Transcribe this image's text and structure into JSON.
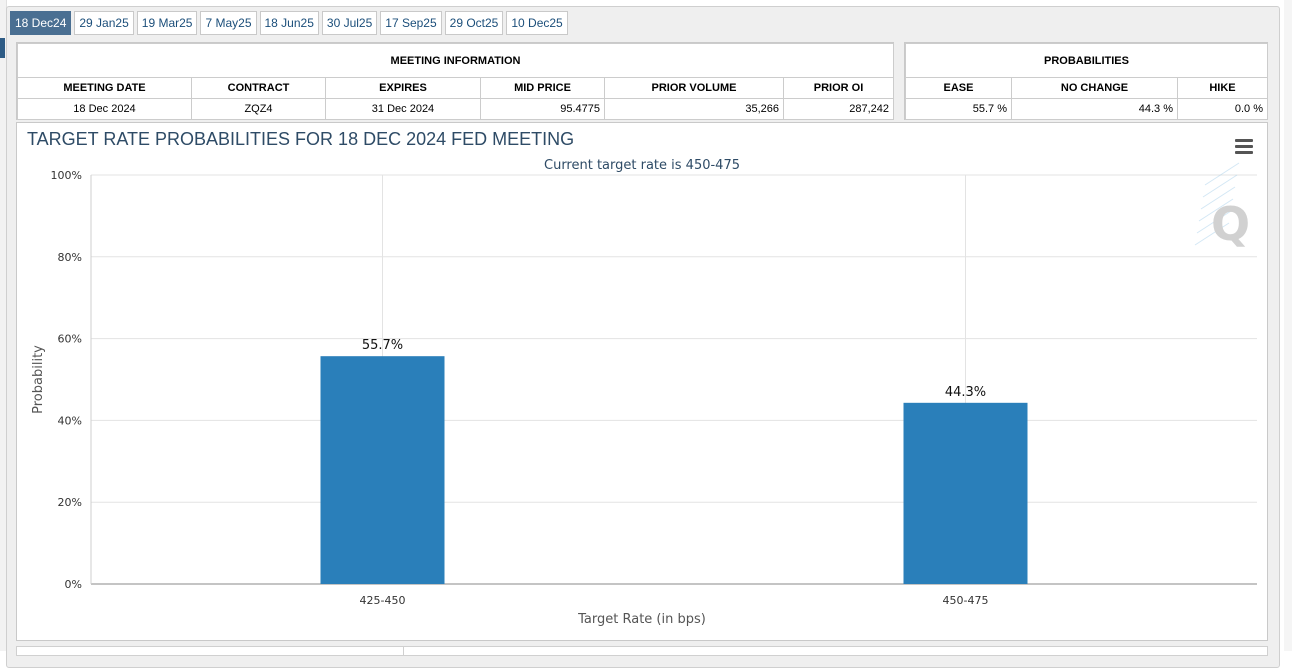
{
  "tabs": [
    "18 Dec24",
    "29 Jan25",
    "19 Mar25",
    "7 May25",
    "18 Jun25",
    "30 Jul25",
    "17 Sep25",
    "29 Oct25",
    "10 Dec25"
  ],
  "meeting_info": {
    "title": "MEETING INFORMATION",
    "headers": [
      "MEETING DATE",
      "CONTRACT",
      "EXPIRES",
      "MID PRICE",
      "PRIOR VOLUME",
      "PRIOR OI"
    ],
    "row": [
      "18 Dec 2024",
      "ZQZ4",
      "31 Dec 2024",
      "95.4775",
      "35,266",
      "287,242"
    ]
  },
  "probabilities": {
    "title": "PROBABILITIES",
    "headers": [
      "EASE",
      "NO CHANGE",
      "HIKE"
    ],
    "row": [
      "55.7 %",
      "44.3 %",
      "0.0 %"
    ]
  },
  "chart": {
    "menu_icon": "hamburger-menu-icon",
    "watermark_icon": "q-logo-icon"
  },
  "chart_data": {
    "type": "bar",
    "title": "TARGET RATE PROBABILITIES FOR 18 DEC 2024 FED MEETING",
    "subtitle": "Current target rate is 450-475",
    "xlabel": "Target Rate (in bps)",
    "ylabel": "Probability",
    "categories": [
      "425-450",
      "450-475"
    ],
    "values": [
      55.7,
      44.3
    ],
    "data_labels": [
      "55.7%",
      "44.3%"
    ],
    "yticks": [
      "0%",
      "20%",
      "40%",
      "60%",
      "80%",
      "100%"
    ],
    "ylim": [
      0,
      100
    ],
    "grid": true,
    "bar_color": "#2a7fba",
    "title_color": "#2e4b66"
  }
}
